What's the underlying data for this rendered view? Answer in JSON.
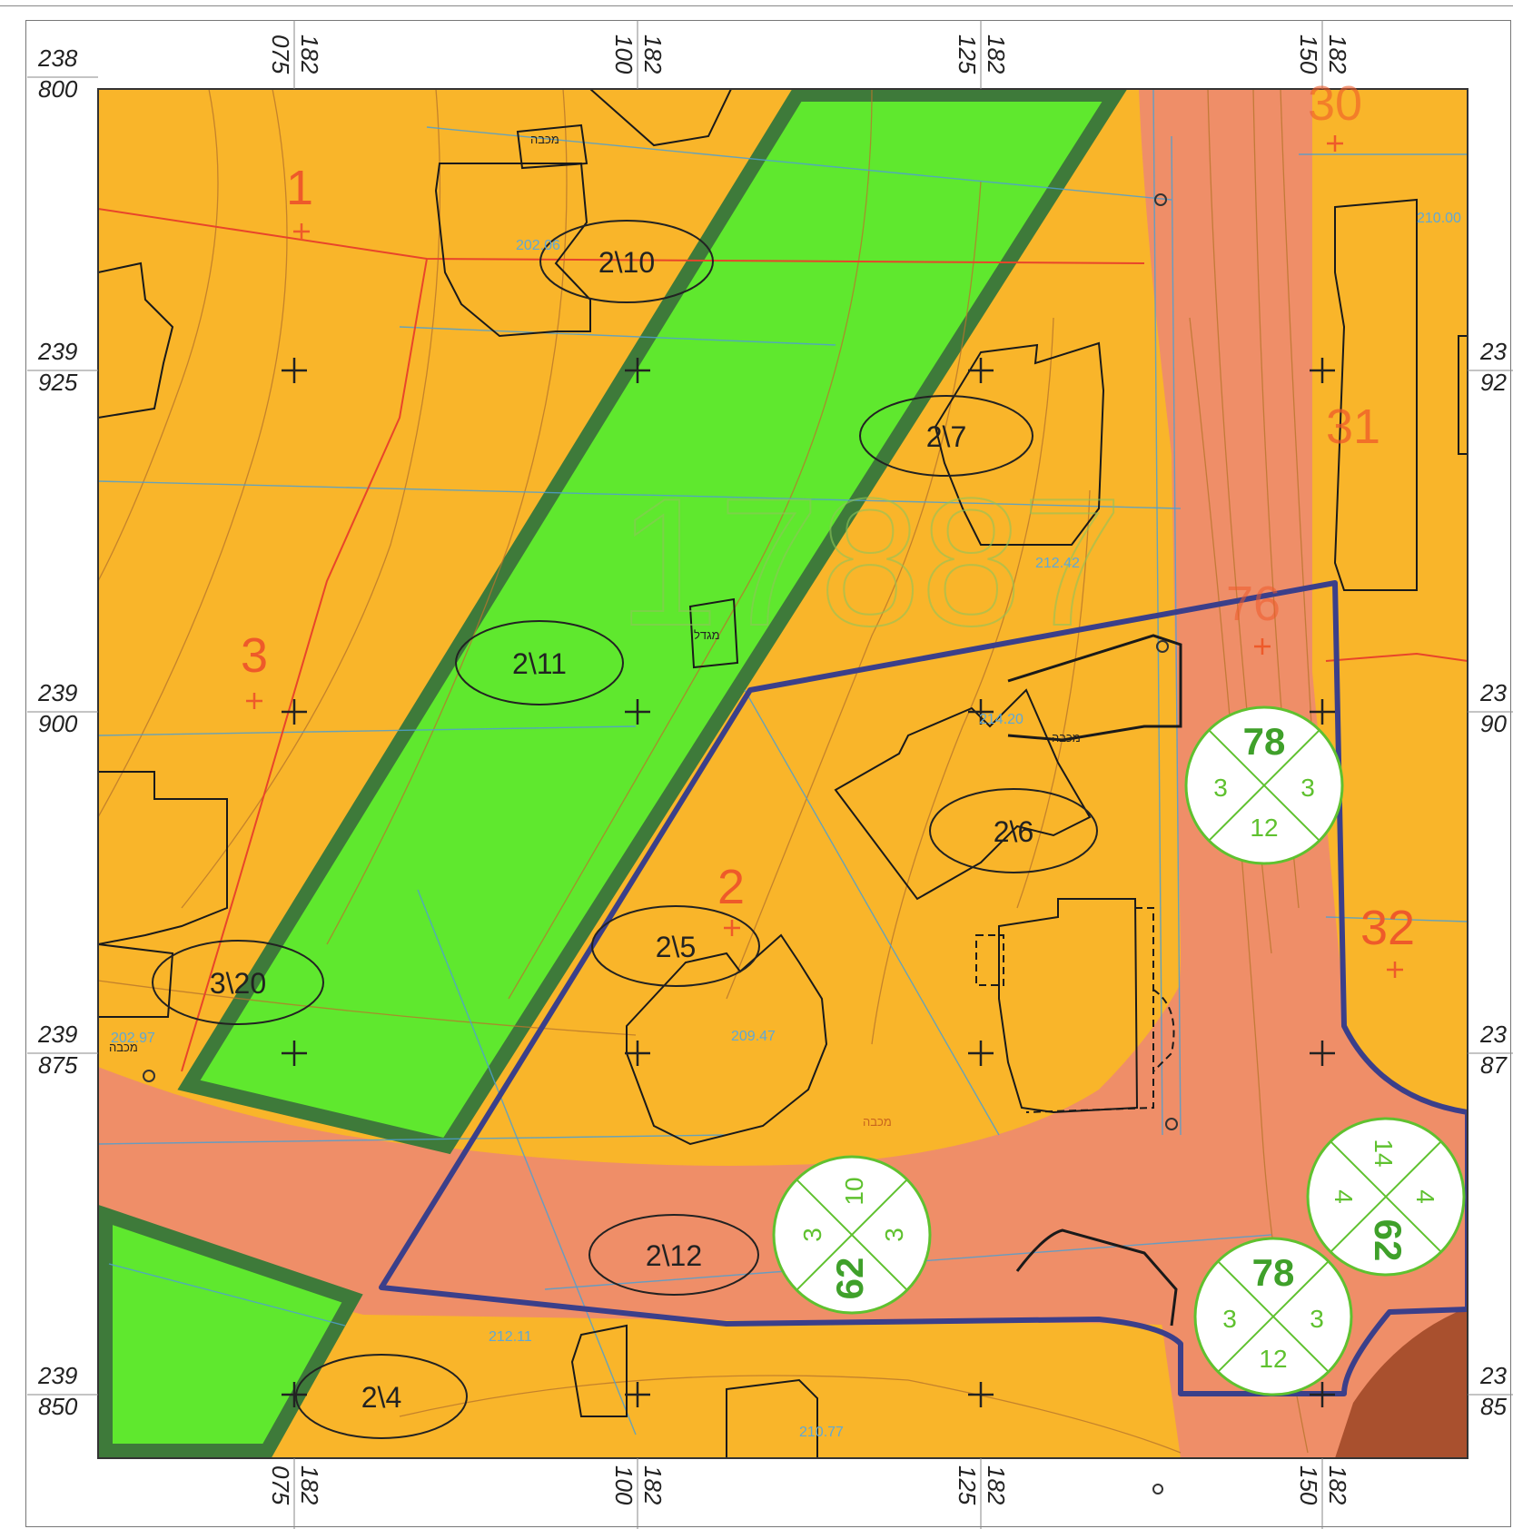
{
  "map": {
    "colors": {
      "residential": "#F9B52A",
      "road": "#EF8E68",
      "road_dark": "#E9745A",
      "green": "#5FE82E",
      "green_border": "#3E7A3A",
      "plan_boundary": "#3B3F8A",
      "corner_brown": "#A9502E",
      "parcel_number": "#EE5A2A",
      "contour": "#B8752C",
      "blue_line": "#4F9FD0"
    },
    "grid": {
      "left_labels": [
        {
          "top": "238",
          "bottom": "800"
        },
        {
          "top": "239",
          "bottom": "925"
        },
        {
          "top": "239",
          "bottom": "900"
        },
        {
          "top": "239",
          "bottom": "875"
        },
        {
          "top": "239",
          "bottom": "850"
        }
      ],
      "right_labels": [
        {
          "top": "23",
          "bottom": "92"
        },
        {
          "top": "23",
          "bottom": "90"
        },
        {
          "top": "23",
          "bottom": "87"
        },
        {
          "top": "23",
          "bottom": "85"
        }
      ],
      "column_labels": [
        {
          "a": "182",
          "b": "075"
        },
        {
          "a": "182",
          "b": "100"
        },
        {
          "a": "182",
          "b": "125"
        },
        {
          "a": "182",
          "b": "150"
        }
      ]
    },
    "plot_labels": [
      "2\\10",
      "2\\7",
      "2\\11",
      "2\\6",
      "2\\5",
      "3\\20",
      "2\\12",
      "2\\4"
    ],
    "parcel_numbers": [
      "1",
      "3",
      "2",
      "30",
      "31",
      "76",
      "32"
    ],
    "block_number": "17887",
    "elevations": [
      "202.06",
      "212.42",
      "214.20",
      "209.47",
      "202.97",
      "210.77",
      "212.11",
      "210.00"
    ],
    "sign_words": [
      "מכבה",
      "מכבה",
      "מכבה",
      "מכבה",
      "מגדל"
    ],
    "road_circles": [
      {
        "top": "78",
        "left": "3",
        "right": "3",
        "bottom": "12"
      },
      {
        "left": "62",
        "top": "3",
        "right": "10",
        "bottom": "3"
      },
      {
        "right": "62",
        "top": "4",
        "left": "14",
        "bottom": "4"
      },
      {
        "top": "78",
        "left": "3",
        "right": "3",
        "bottom": "12"
      }
    ],
    "icons": [
      "well-icon"
    ]
  }
}
